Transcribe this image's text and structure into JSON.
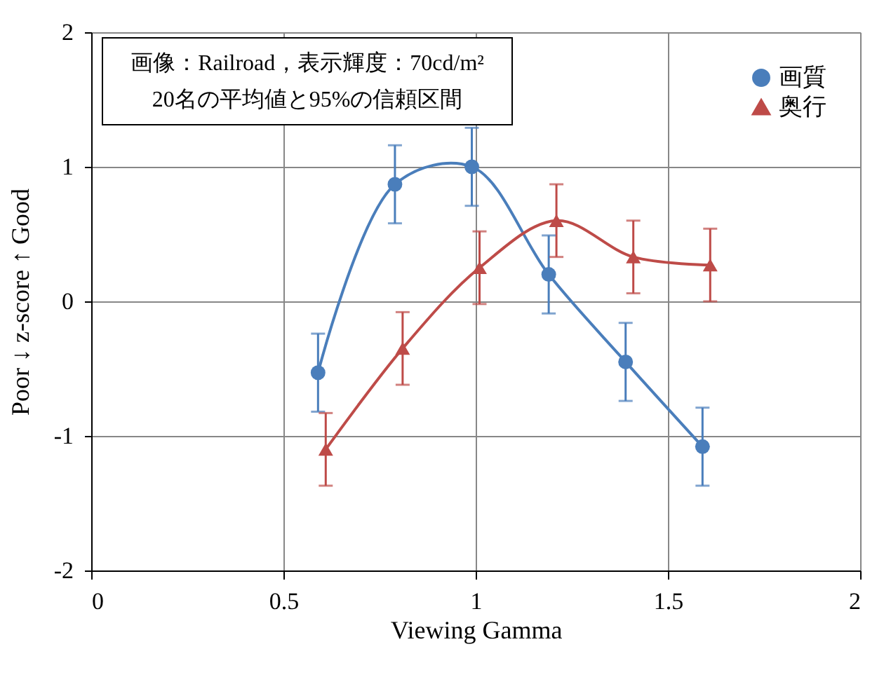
{
  "chart_data": {
    "type": "line",
    "xlabel": "Viewing Gamma",
    "ylabel": "Poor  ↓        z-score        ↑  Good",
    "annotations": [
      "画像：Railroad，表示輝度：70cd/m²",
      "20名の平均値と95%の信頼区間"
    ],
    "xlim": [
      0,
      2
    ],
    "xticks": [
      0,
      0.5,
      1,
      1.5,
      2
    ],
    "ylim": [
      -2,
      2
    ],
    "yticks": [
      -2,
      -1,
      0,
      1,
      2
    ],
    "grid": true,
    "legend": "top right",
    "line_style": "solid",
    "series": [
      {
        "name": "画質",
        "color": "#4a7ebb",
        "marker": "circle",
        "x": [
          0.59,
          0.79,
          0.99,
          1.19,
          1.39,
          1.59
        ],
        "values": [
          -0.53,
          0.87,
          1.0,
          0.2,
          -0.45,
          -1.08
        ],
        "errors": [
          0.29,
          0.29,
          0.29,
          0.29,
          0.29,
          0.29
        ]
      },
      {
        "name": "奥行",
        "color": "#be4b48",
        "marker": "triangle",
        "x": [
          0.61,
          0.81,
          1.01,
          1.21,
          1.41,
          1.61
        ],
        "values": [
          -1.1,
          -0.35,
          0.25,
          0.6,
          0.33,
          0.27
        ],
        "errors": [
          0.27,
          0.27,
          0.27,
          0.27,
          0.27,
          0.27
        ]
      }
    ]
  }
}
